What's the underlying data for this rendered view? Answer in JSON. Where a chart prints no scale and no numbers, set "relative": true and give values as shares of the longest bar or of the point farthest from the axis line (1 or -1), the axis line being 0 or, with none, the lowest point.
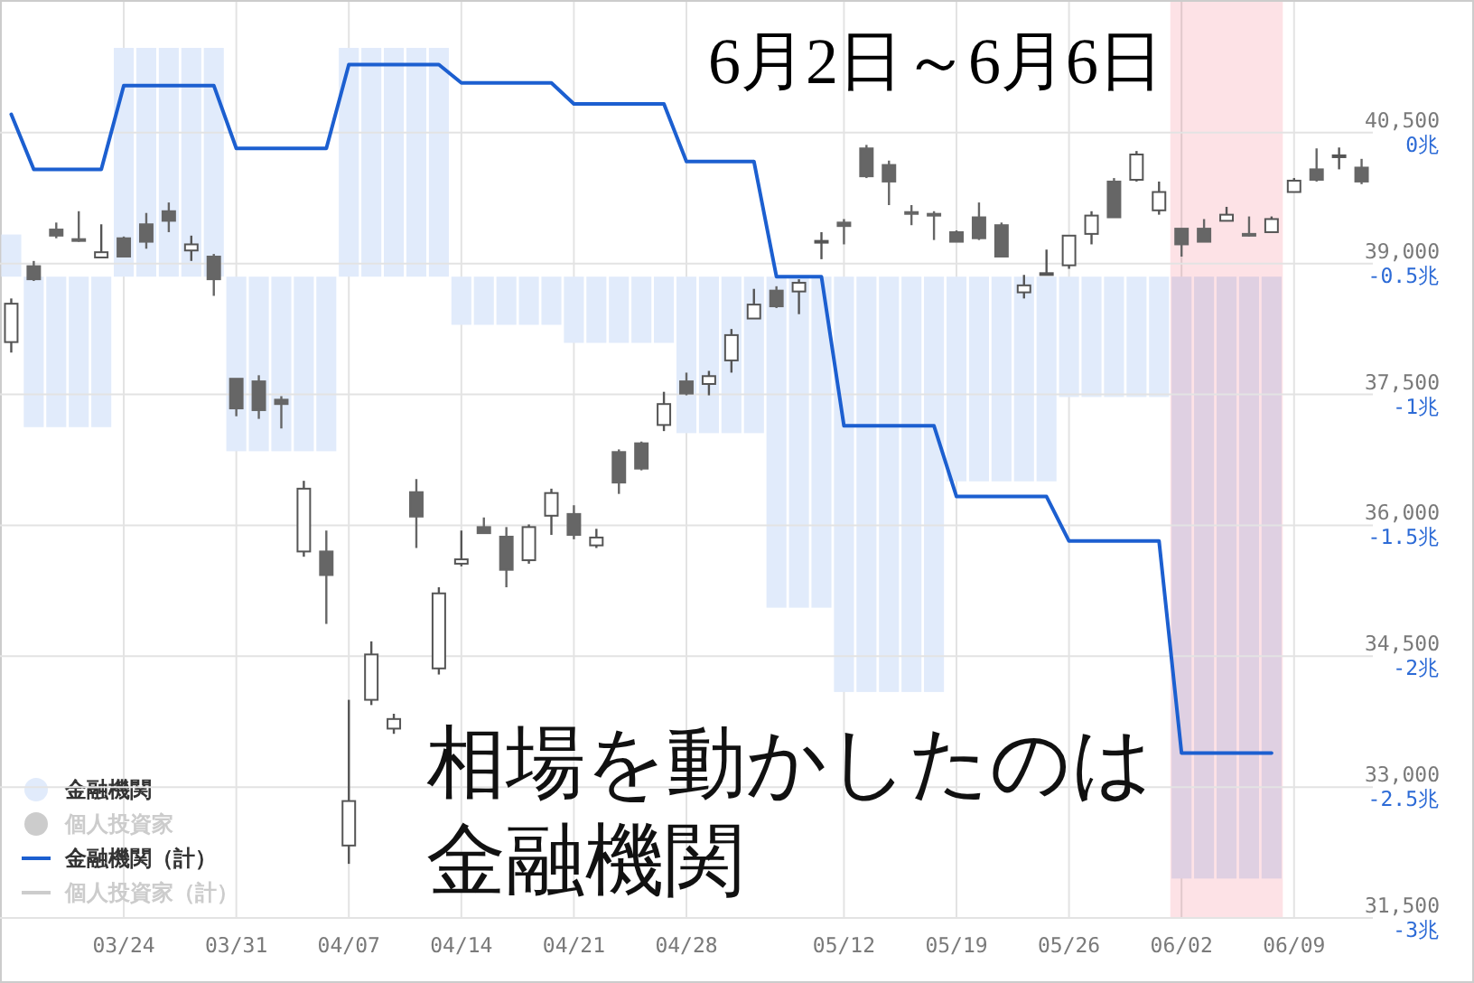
{
  "chart_data": [
    {
      "type": "bar",
      "relative": true,
      "grid": "x",
      "legend": "bottom left",
      "categories": [
        null,
        null,
        null,
        null,
        null,
        "03/24",
        null,
        null,
        null,
        null,
        "03/31",
        null,
        null,
        null,
        null,
        "04/07",
        null,
        null,
        null,
        null,
        "04/14",
        null,
        null,
        null,
        null,
        "04/21",
        null,
        null,
        null,
        null,
        "04/28",
        null,
        null,
        null,
        null,
        null,
        null,
        "05/12",
        null,
        null,
        null,
        null,
        "05/19",
        null,
        null,
        null,
        null,
        "05/26",
        null,
        null,
        null,
        null,
        "06/02",
        null,
        null,
        null,
        null,
        "06/09",
        null,
        null,
        null
      ],
      "series": [
        {
          "name": "金融機関",
          "color": "#e1ebfb",
          "values": [
            0.07,
            -0.25,
            -0.25,
            -0.25,
            -0.25,
            0.38,
            0.38,
            0.38,
            0.38,
            0.38,
            -0.29,
            -0.29,
            -0.29,
            -0.29,
            -0.29,
            0.38,
            0.38,
            0.38,
            0.38,
            0.38,
            -0.08,
            -0.08,
            -0.08,
            -0.08,
            -0.08,
            -0.11,
            -0.11,
            -0.11,
            -0.11,
            -0.11,
            -0.26,
            -0.26,
            -0.26,
            -0.26,
            -0.55,
            -0.55,
            -0.55,
            -0.69,
            -0.69,
            -0.69,
            -0.69,
            -0.69,
            -0.34,
            -0.34,
            -0.34,
            -0.34,
            -0.34,
            -0.2,
            -0.2,
            -0.2,
            -0.2,
            -0.2,
            -1,
            -1,
            -1,
            -1,
            -1,
            null,
            null,
            null,
            null
          ]
        },
        {
          "name": "個人投資家",
          "color": "#cccccc",
          "values": [
            null,
            null,
            null,
            null,
            null,
            null,
            null,
            null,
            null,
            null,
            null,
            null,
            null,
            null,
            null,
            null,
            null,
            null,
            null,
            null,
            null,
            null,
            null,
            null,
            null,
            null,
            null,
            null,
            null,
            null,
            null,
            null,
            null,
            null,
            null,
            null,
            null,
            null,
            null,
            null,
            null,
            null,
            null,
            null,
            null,
            null,
            null,
            null,
            null,
            null,
            null,
            null,
            null,
            null,
            null,
            null,
            null,
            null,
            null,
            null,
            null
          ]
        }
      ],
      "bands": [
        {
          "axis": "x",
          "from": "06/02",
          "to": "06/09",
          "color": "#fde2e6"
        }
      ]
    },
    {
      "type": "candlestick",
      "title": "相場を動かしたのは金融機関",
      "annotations": [
        "6月2日～6月6日"
      ],
      "categories": [
        null,
        null,
        null,
        null,
        null,
        null,
        null,
        null,
        null,
        null,
        null,
        null,
        null,
        null,
        null,
        null,
        null,
        null,
        null,
        null,
        null,
        null,
        null,
        null,
        null,
        null,
        null,
        null,
        null,
        null,
        null,
        null,
        null,
        null,
        null,
        null,
        null,
        null,
        null,
        null,
        null,
        null,
        null,
        null,
        null,
        null,
        null,
        null,
        null,
        null,
        null,
        null,
        null,
        null,
        null,
        null,
        null,
        null,
        null,
        null,
        null
      ],
      "ohlc": [
        [
          38100,
          38600,
          37980,
          38540
        ],
        [
          38970,
          39030,
          38800,
          38820
        ],
        [
          39390,
          39470,
          39290,
          39320
        ],
        [
          39280,
          39600,
          39250,
          39260
        ],
        [
          39070,
          39450,
          39070,
          39130
        ],
        [
          39290,
          39310,
          39080,
          39080
        ],
        [
          39450,
          39580,
          39170,
          39250
        ],
        [
          39600,
          39700,
          39360,
          39490
        ],
        [
          39150,
          39320,
          39030,
          39220
        ],
        [
          39080,
          39110,
          38630,
          38820
        ],
        [
          37680,
          37680,
          37250,
          37340
        ],
        [
          37650,
          37720,
          37220,
          37320
        ],
        [
          37440,
          37480,
          37110,
          37390
        ],
        [
          35700,
          36510,
          35640,
          36420
        ],
        [
          35700,
          35940,
          34870,
          35430
        ],
        [
          32330,
          34000,
          32120,
          32840
        ],
        [
          34000,
          34670,
          33940,
          34520
        ],
        [
          33670,
          33840,
          33610,
          33780
        ],
        [
          36380,
          36530,
          35740,
          36100
        ],
        [
          34360,
          35290,
          34290,
          35220
        ],
        [
          35560,
          35940,
          35530,
          35610
        ],
        [
          35980,
          36090,
          35910,
          35910
        ],
        [
          35870,
          35980,
          35290,
          35490
        ],
        [
          35600,
          36010,
          35560,
          35980
        ],
        [
          36110,
          36420,
          35890,
          36370
        ],
        [
          36130,
          36230,
          35840,
          35890
        ],
        [
          35770,
          35960,
          35740,
          35860
        ],
        [
          36840,
          36870,
          36360,
          36490
        ],
        [
          36940,
          36960,
          36630,
          36650
        ],
        [
          37150,
          37530,
          37080,
          37390
        ],
        [
          37650,
          37750,
          37490,
          37510
        ],
        [
          37620,
          37770,
          37490,
          37710
        ],
        [
          37890,
          38250,
          37750,
          38180
        ],
        [
          38370,
          38710,
          38370,
          38530
        ],
        [
          38690,
          38740,
          38490,
          38510
        ],
        [
          38680,
          38820,
          38420,
          38780
        ],
        [
          39250,
          39360,
          39050,
          39260
        ],
        [
          39470,
          39510,
          39220,
          39430
        ],
        [
          40320,
          40360,
          39980,
          40000
        ],
        [
          40130,
          40180,
          39670,
          39940
        ],
        [
          39590,
          39670,
          39440,
          39570
        ],
        [
          39570,
          39600,
          39270,
          39550
        ],
        [
          39360,
          39380,
          39250,
          39250
        ],
        [
          39530,
          39700,
          39270,
          39290
        ],
        [
          39440,
          39470,
          39080,
          39080
        ],
        [
          38670,
          38870,
          38600,
          38750
        ],
        [
          38880,
          39160,
          38880,
          38890
        ],
        [
          38980,
          39320,
          38940,
          39320
        ],
        [
          39340,
          39600,
          39220,
          39550
        ],
        [
          39940,
          39980,
          39530,
          39530
        ],
        [
          39960,
          40290,
          39940,
          40250
        ],
        [
          39610,
          39940,
          39560,
          39820
        ],
        [
          39400,
          39400,
          39080,
          39220
        ],
        [
          39400,
          39510,
          39250,
          39250
        ],
        [
          39490,
          39650,
          39490,
          39560
        ],
        [
          39340,
          39540,
          39310,
          39320
        ],
        [
          39360,
          39540,
          39360,
          39510
        ],
        [
          39820,
          39980,
          39820,
          39950
        ],
        [
          40080,
          40320,
          39940,
          39960
        ],
        [
          40220,
          40330,
          40080,
          40240
        ],
        [
          40100,
          40200,
          39910,
          39940
        ]
      ],
      "series": [
        {
          "name": "金融機関（計）",
          "type": "line",
          "axis": "y2",
          "color": "#1c5fd0",
          "values": [
            0.07,
            -0.14,
            -0.14,
            -0.14,
            -0.14,
            0.18,
            0.18,
            0.18,
            0.18,
            0.18,
            -0.06,
            -0.06,
            -0.06,
            -0.06,
            -0.06,
            0.26,
            0.26,
            0.26,
            0.26,
            0.26,
            0.19,
            0.19,
            0.19,
            0.19,
            0.19,
            0.11,
            0.11,
            0.11,
            0.11,
            0.11,
            -0.11,
            -0.11,
            -0.11,
            -0.11,
            -0.55,
            -0.55,
            -0.55,
            -1.12,
            -1.12,
            -1.12,
            -1.12,
            -1.12,
            -1.39,
            -1.39,
            -1.39,
            -1.39,
            -1.39,
            -1.56,
            -1.56,
            -1.56,
            -1.56,
            -1.56,
            -2.37,
            -2.37,
            -2.37,
            -2.37,
            -2.37,
            null,
            null,
            null,
            null
          ]
        },
        {
          "name": "個人投資家（計）",
          "type": "line",
          "axis": "y2",
          "color": "#cccccc",
          "values": [
            null,
            null,
            null,
            null,
            null,
            null,
            null,
            null,
            null,
            null,
            null,
            null,
            null,
            null,
            null,
            null,
            null,
            null,
            null,
            null,
            null,
            null,
            null,
            null,
            null,
            null,
            null,
            null,
            null,
            null,
            null,
            null,
            null,
            null,
            null,
            null,
            null,
            null,
            null,
            null,
            null,
            null,
            null,
            null,
            null,
            null,
            null,
            null,
            null,
            null,
            null,
            null,
            null,
            null,
            null,
            null,
            null,
            null,
            null,
            null,
            null
          ]
        }
      ],
      "ylim": [
        31500,
        42000
      ],
      "yticks": [
        {
          "value": 31500,
          "label": "31,500"
        },
        {
          "value": 33000,
          "label": "33,000"
        },
        {
          "value": 34500,
          "label": "34,500"
        },
        {
          "value": 36000,
          "label": "36,000"
        },
        {
          "value": 37500,
          "label": "37,500"
        },
        {
          "value": 39000,
          "label": "39,000"
        },
        {
          "value": 40500,
          "label": "40,500"
        }
      ],
      "y2lim": [
        -3,
        0.5
      ],
      "y2ticks": [
        {
          "value": -3,
          "label": "-3兆"
        },
        {
          "value": -2.5,
          "label": "-2.5兆"
        },
        {
          "value": -2,
          "label": "-2兆"
        },
        {
          "value": -1.5,
          "label": "-1.5兆"
        },
        {
          "value": -1,
          "label": "-1兆"
        },
        {
          "value": -0.5,
          "label": "-0.5兆"
        },
        {
          "value": 0,
          "label": "0兆"
        }
      ],
      "grid": "y",
      "legend": "bottom left"
    }
  ]
}
